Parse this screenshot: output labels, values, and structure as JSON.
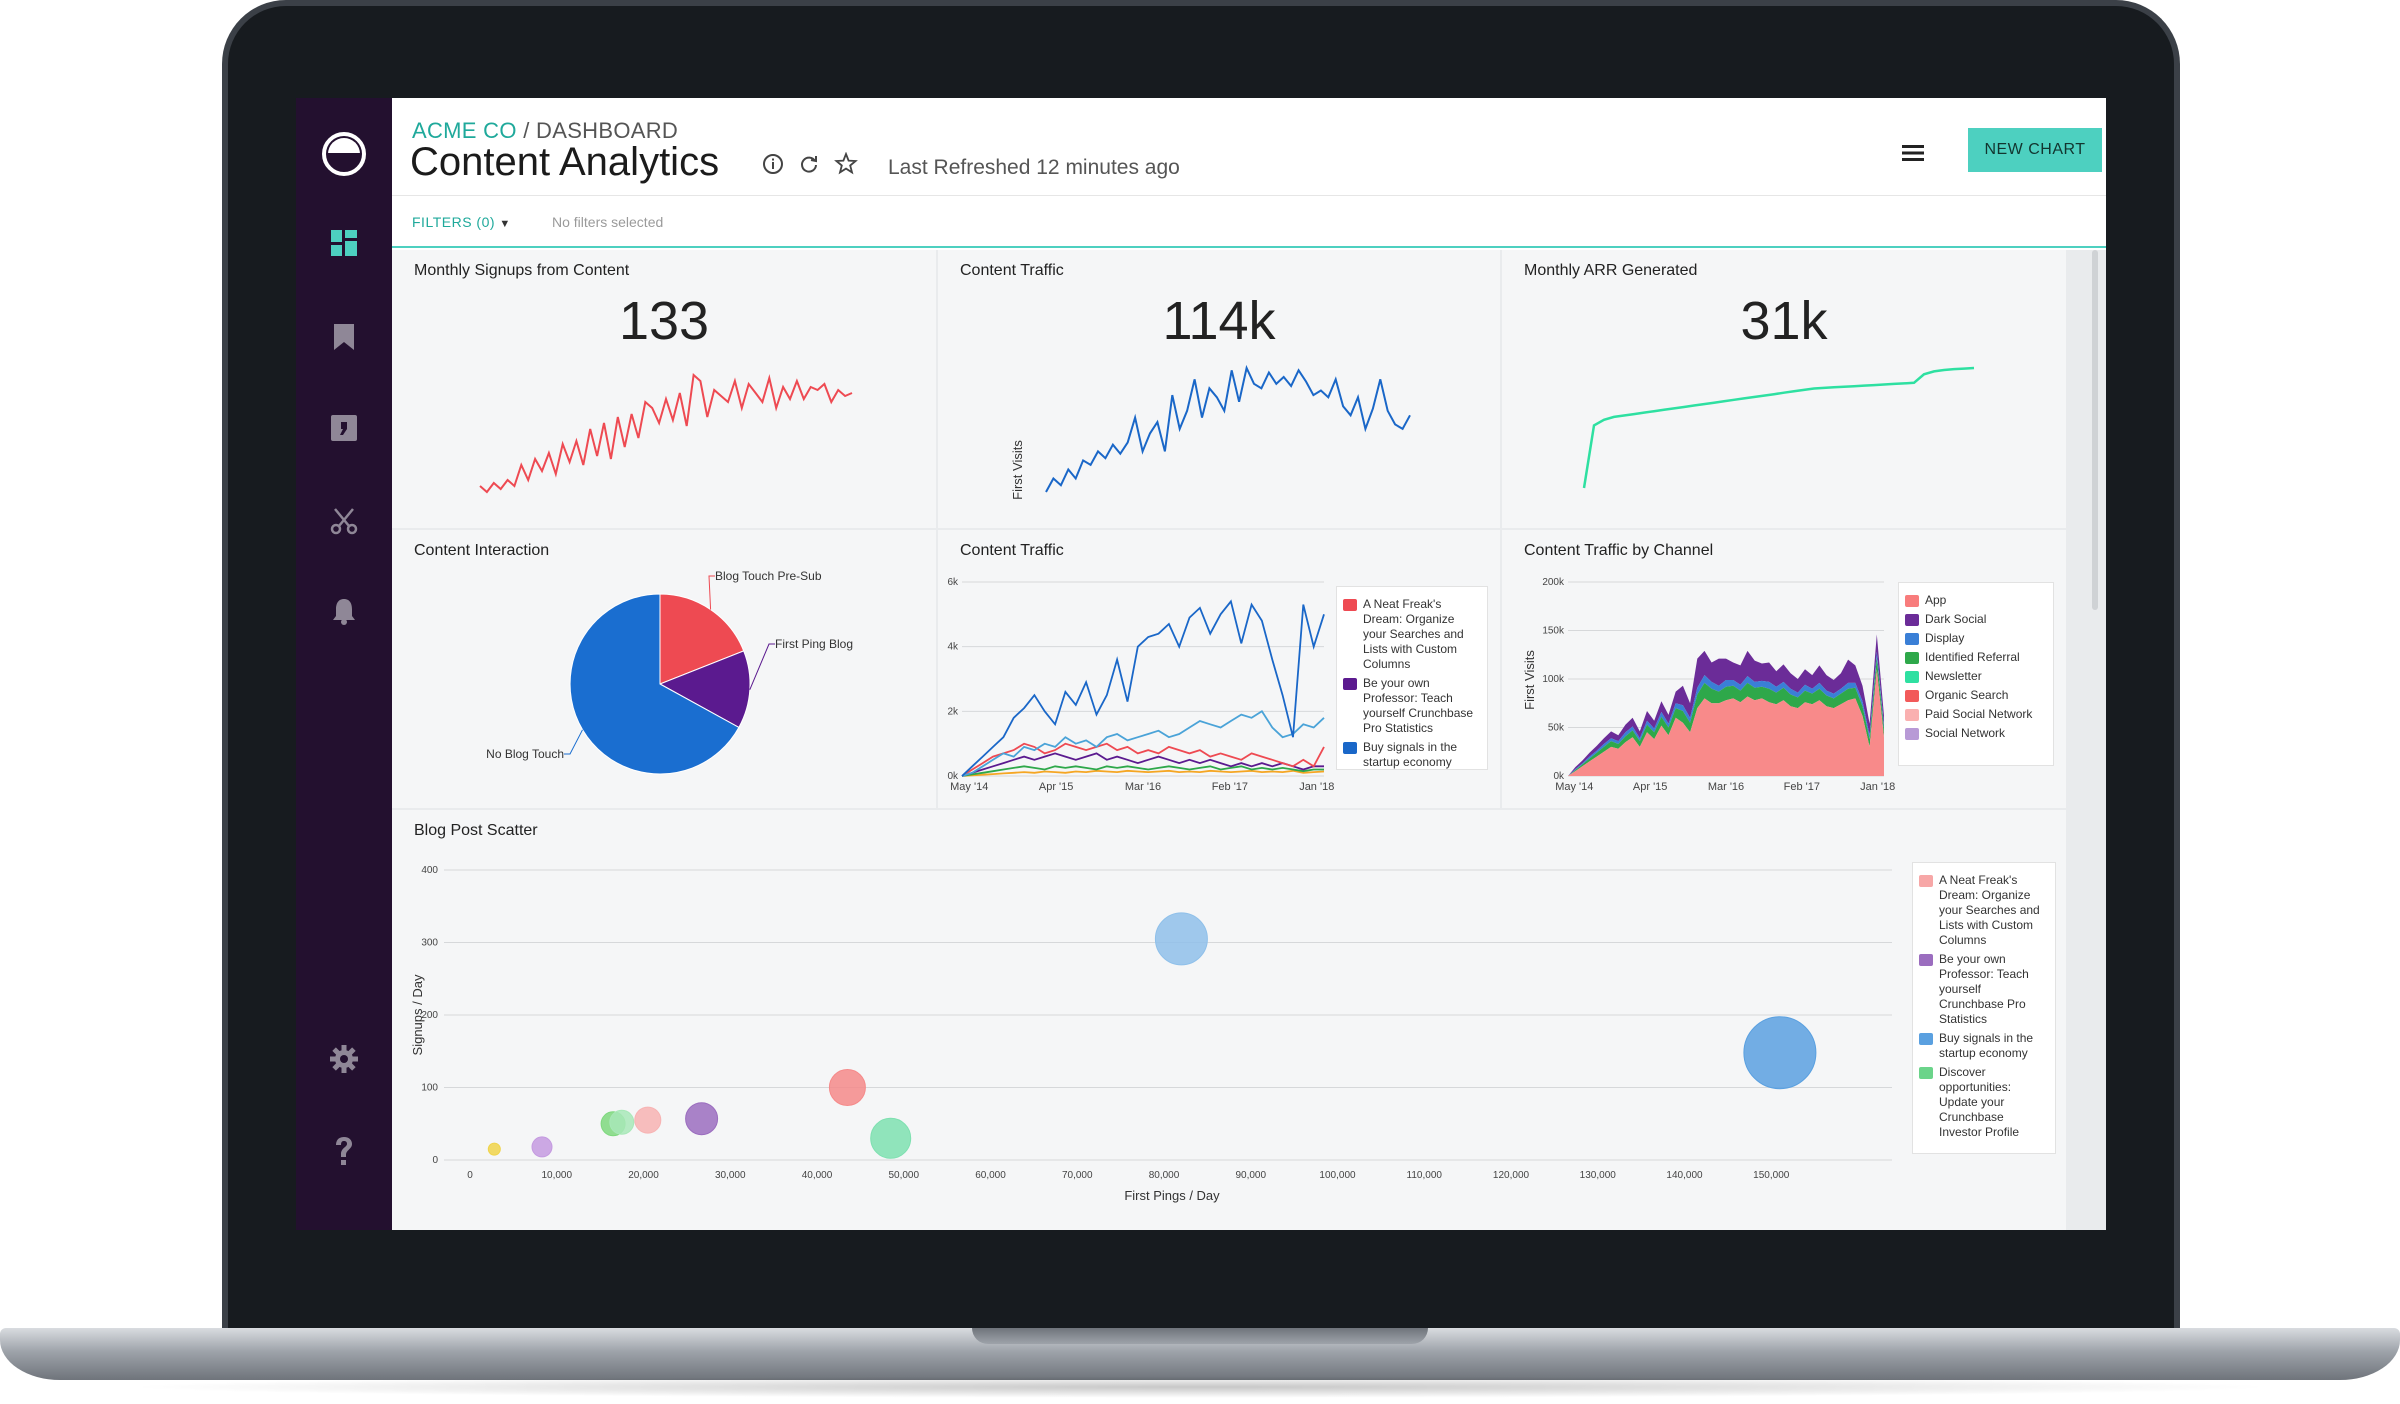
{
  "breadcrumb": {
    "org": "ACME CO",
    "separator": "/",
    "section": "DASHBOARD"
  },
  "title": "Content Analytics",
  "refreshed": "Last Refreshed 12 minutes ago",
  "new_chart_label": "NEW CHART",
  "filters": {
    "label": "FILTERS (0)",
    "none": "No filters selected"
  },
  "sidebar": [
    "logo-icon",
    "dashboard-icon",
    "bookmark-icon",
    "note-icon",
    "scissors-icon",
    "bell-icon",
    "gear-icon",
    "help-icon"
  ],
  "colors": {
    "accent": "#4dd0c0",
    "sidebar": "#23102f",
    "red": "#ee4a52",
    "blue": "#1a67c8",
    "green": "#2ee0a1"
  },
  "chart_data": [
    {
      "id": "signups",
      "type": "line",
      "title": "Monthly Signups from Content",
      "kpi": "133",
      "values": [
        3,
        1,
        4,
        2,
        5,
        3,
        10,
        5,
        12,
        8,
        14,
        7,
        17,
        11,
        18,
        10,
        22,
        13,
        24,
        12,
        26,
        16,
        27,
        19,
        31,
        29,
        24,
        32,
        25,
        34,
        23,
        40,
        38,
        26,
        35,
        33,
        31,
        38,
        29,
        37,
        34,
        31,
        39,
        29,
        36,
        32,
        38,
        32,
        36,
        35,
        37,
        31,
        35,
        33,
        34
      ]
    },
    {
      "id": "traffic_kpi",
      "type": "line",
      "title": "Content Traffic",
      "kpi": "114k",
      "ylabel": "First Visits",
      "values": [
        2,
        8,
        5,
        12,
        8,
        16,
        14,
        20,
        17,
        23,
        19,
        24,
        35,
        20,
        28,
        33,
        20,
        45,
        30,
        38,
        52,
        35,
        48,
        44,
        38,
        56,
        42,
        57,
        50,
        48,
        55,
        50,
        53,
        49,
        56,
        51,
        45,
        47,
        44,
        52,
        40,
        36,
        44,
        30,
        39,
        52,
        38,
        32,
        30,
        36
      ]
    },
    {
      "id": "arr",
      "type": "line",
      "title": "Monthly ARR Generated",
      "kpi": "31k",
      "values": [
        0,
        22,
        24,
        25,
        25.5,
        26,
        26.5,
        27,
        27.5,
        28,
        28.5,
        29,
        29.5,
        30,
        30.5,
        31,
        31.5,
        32,
        32.5,
        33,
        33.5,
        34,
        34.5,
        35,
        35.2,
        35.4,
        35.6,
        35.8,
        36,
        36.2,
        36.4,
        36.6,
        36.8,
        37,
        40,
        41,
        41.5,
        41.8,
        42,
        42.2
      ]
    },
    {
      "id": "interaction",
      "type": "pie",
      "title": "Content Interaction",
      "slices": [
        {
          "label": "Blog Touch Pre-Sub",
          "value": 19,
          "color": "#ee4a52"
        },
        {
          "label": "First Ping Blog",
          "value": 14,
          "color": "#5b1a8f"
        },
        {
          "label": "No Blog Touch",
          "value": 67,
          "color": "#1a6ed0"
        }
      ]
    },
    {
      "id": "traffic_multi",
      "type": "line",
      "title": "Content Traffic",
      "x_ticks": [
        "May '14",
        "Apr '15",
        "Mar '16",
        "Feb '17",
        "Jan '18"
      ],
      "y_ticks": [
        "0k",
        "2k",
        "4k",
        "6k"
      ],
      "ylim": [
        0,
        6000
      ],
      "legend": [
        {
          "label": "A Neat Freak's Dream: Organize your Searches and Lists with Custom Columns",
          "color": "#ee4a52"
        },
        {
          "label": "Be your own Professor: Teach yourself Crunchbase Pro Statistics",
          "color": "#5b1a8f"
        },
        {
          "label": "Buy signals in the startup economy",
          "color": "#1a67c8"
        }
      ],
      "series": [
        {
          "color": "#1a67c8",
          "values": [
            0,
            300,
            600,
            900,
            1200,
            1800,
            2100,
            2500,
            2000,
            1600,
            2600,
            2200,
            2900,
            1900,
            2500,
            3600,
            2300,
            4000,
            4300,
            4400,
            4700,
            4000,
            4900,
            5200,
            4400,
            5000,
            5400,
            4100,
            5300,
            4800,
            3600,
            2500,
            1200,
            5300,
            4000,
            5000
          ]
        },
        {
          "color": "#4aa3d8",
          "values": [
            0,
            100,
            300,
            500,
            700,
            600,
            900,
            800,
            1000,
            900,
            1200,
            1000,
            1100,
            900,
            1200,
            1300,
            1100,
            1200,
            1300,
            1400,
            1200,
            1300,
            1500,
            1700,
            1600,
            1500,
            1700,
            1900,
            1800,
            2000,
            1500,
            1200,
            1300,
            1600,
            1500,
            1800
          ]
        },
        {
          "color": "#ee4a52",
          "values": [
            0,
            200,
            400,
            600,
            700,
            800,
            1000,
            900,
            700,
            800,
            1000,
            900,
            800,
            900,
            1000,
            800,
            900,
            700,
            800,
            700,
            900,
            800,
            700,
            800,
            600,
            700,
            600,
            500,
            700,
            600,
            500,
            400,
            300,
            500,
            300,
            900
          ]
        },
        {
          "color": "#5b1a8f",
          "values": [
            0,
            100,
            200,
            300,
            400,
            500,
            600,
            500,
            600,
            700,
            600,
            500,
            600,
            700,
            500,
            600,
            500,
            400,
            500,
            600,
            500,
            400,
            500,
            400,
            500,
            400,
            300,
            400,
            300,
            400,
            300,
            400,
            300,
            200,
            300,
            300
          ]
        },
        {
          "color": "#2ea84a",
          "values": [
            0,
            50,
            100,
            150,
            200,
            250,
            300,
            250,
            200,
            300,
            250,
            300,
            250,
            200,
            300,
            250,
            300,
            250,
            200,
            250,
            300,
            250,
            200,
            250,
            300,
            200,
            250,
            300,
            200,
            250,
            200,
            250,
            200,
            150,
            200,
            200
          ]
        },
        {
          "color": "#f5a623",
          "values": [
            0,
            20,
            40,
            60,
            80,
            100,
            120,
            100,
            140,
            120,
            100,
            140,
            120,
            160,
            140,
            120,
            160,
            140,
            120,
            140,
            160,
            120,
            140,
            120,
            160,
            140,
            120,
            140,
            160,
            120,
            140,
            120,
            160,
            100,
            120,
            140
          ]
        }
      ]
    },
    {
      "id": "channel",
      "type": "area",
      "title": "Content Traffic by Channel",
      "ylabel": "First Visits",
      "x_ticks": [
        "May '14",
        "Apr '15",
        "Mar '16",
        "Feb '17",
        "Jan '18"
      ],
      "y_ticks": [
        "0k",
        "50k",
        "100k",
        "150k",
        "200k"
      ],
      "ylim": [
        0,
        200000
      ],
      "legend": [
        {
          "label": "App",
          "color": "#f87c7c"
        },
        {
          "label": "Dark Social",
          "color": "#6b2c98"
        },
        {
          "label": "Display",
          "color": "#3a7fd6"
        },
        {
          "label": "Identified Referral",
          "color": "#2ea84a"
        },
        {
          "label": "Newsletter",
          "color": "#2ee0a1"
        },
        {
          "label": "Organic Search",
          "color": "#f25a5a"
        },
        {
          "label": "Paid Social Network",
          "color": "#fab0b0"
        },
        {
          "label": "Social Network",
          "color": "#b89ad6"
        }
      ],
      "series": [
        {
          "color": "#f88a8a",
          "values": [
            0,
            5,
            10,
            15,
            20,
            25,
            30,
            28,
            35,
            40,
            30,
            45,
            38,
            52,
            42,
            60,
            55,
            45,
            70,
            80,
            75,
            75,
            78,
            80,
            76,
            82,
            78,
            80,
            76,
            74,
            78,
            72,
            70,
            76,
            74,
            78,
            72,
            70,
            74,
            78,
            80,
            62,
            30,
            110,
            40
          ]
        },
        {
          "color": "#2ea84a",
          "values": [
            0,
            1,
            2,
            3,
            4,
            5,
            6,
            5,
            6,
            7,
            6,
            8,
            7,
            9,
            8,
            10,
            12,
            10,
            14,
            16,
            15,
            12,
            14,
            13,
            12,
            14,
            13,
            12,
            14,
            12,
            13,
            12,
            11,
            12,
            11,
            12,
            11,
            10,
            11,
            12,
            11,
            10,
            8,
            12,
            8
          ]
        },
        {
          "color": "#3a7fd6",
          "values": [
            0,
            1,
            1,
            2,
            2,
            3,
            3,
            3,
            4,
            4,
            3,
            4,
            4,
            5,
            4,
            5,
            6,
            5,
            7,
            8,
            7,
            6,
            7,
            6,
            6,
            7,
            6,
            6,
            7,
            6,
            6,
            6,
            5,
            6,
            5,
            6,
            5,
            5,
            5,
            6,
            5,
            5,
            4,
            6,
            4
          ]
        },
        {
          "color": "#6b2c98",
          "values": [
            0,
            2,
            3,
            4,
            5,
            6,
            7,
            6,
            8,
            9,
            7,
            10,
            8,
            11,
            9,
            12,
            20,
            15,
            30,
            25,
            20,
            28,
            22,
            18,
            20,
            26,
            22,
            18,
            20,
            16,
            18,
            16,
            14,
            16,
            14,
            18,
            16,
            14,
            16,
            24,
            18,
            16,
            12,
            18,
            10
          ]
        }
      ]
    },
    {
      "id": "scatter",
      "type": "scatter",
      "title": "Blog Post Scatter",
      "xlabel": "First Pings / Day",
      "ylabel": "Signups / Day",
      "x_ticks": [
        "0",
        "10,000",
        "20,000",
        "30,000",
        "40,000",
        "50,000",
        "60,000",
        "70,000",
        "80,000",
        "90,000",
        "100,000",
        "110,000",
        "120,000",
        "130,000",
        "140,000",
        "150,000"
      ],
      "y_ticks": [
        "0",
        "100",
        "200",
        "300",
        "400"
      ],
      "xlim": [
        0,
        160000
      ],
      "ylim": [
        0,
        400
      ],
      "legend": [
        {
          "label": "A Neat Freak's Dream: Organize your Searches and Lists with Custom Columns",
          "color": "#f7a7a7"
        },
        {
          "label": "Be your own Professor: Teach yourself Crunchbase Pro Statistics",
          "color": "#9b6dbf"
        },
        {
          "label": "Buy signals in the startup economy",
          "color": "#5aa0e0"
        },
        {
          "label": "Discover opportunities: Update your Crunchbase Investor Profile",
          "color": "#6bd48a"
        }
      ],
      "points": [
        {
          "x": 2800,
          "y": 15,
          "r": 6,
          "color": "#f0d44a"
        },
        {
          "x": 8300,
          "y": 18,
          "r": 10,
          "color": "#c49ae0"
        },
        {
          "x": 16500,
          "y": 50,
          "r": 12,
          "color": "#7ed87e"
        },
        {
          "x": 17500,
          "y": 52,
          "r": 12,
          "color": "#a8e8b8"
        },
        {
          "x": 20500,
          "y": 55,
          "r": 13,
          "color": "#f7b3b3"
        },
        {
          "x": 26700,
          "y": 57,
          "r": 16,
          "color": "#9b6dbf"
        },
        {
          "x": 43500,
          "y": 100,
          "r": 18,
          "color": "#f58a8a"
        },
        {
          "x": 48500,
          "y": 30,
          "r": 20,
          "color": "#7ee0b0"
        },
        {
          "x": 82000,
          "y": 305,
          "r": 26,
          "color": "#8fc0ea"
        },
        {
          "x": 151000,
          "y": 148,
          "r": 36,
          "color": "#5aa0e0"
        }
      ]
    }
  ]
}
